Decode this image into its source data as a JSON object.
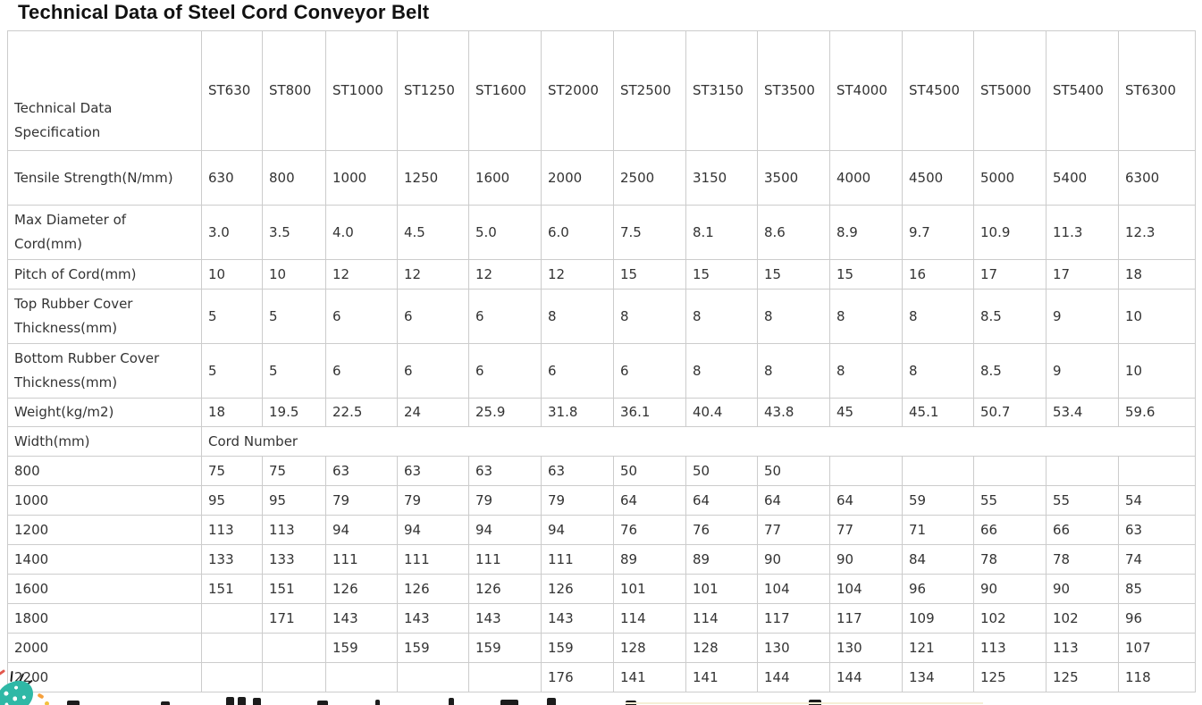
{
  "page": {
    "title": "Technical Data of Steel Cord Conveyor Belt"
  },
  "table": {
    "spec_header": "Technical Data Specification",
    "grades": [
      "ST630",
      "ST800",
      "ST1000",
      "ST1250",
      "ST1600",
      "ST2000",
      "ST2500",
      "ST3150",
      "ST3500",
      "ST4000",
      "ST4500",
      "ST5000",
      "ST5400",
      "ST6300"
    ],
    "spec_rows": [
      {
        "label": "Tensile Strength(N/mm)",
        "values": [
          "630",
          "800",
          "1000",
          "1250",
          "1600",
          "2000",
          "2500",
          "3150",
          "3500",
          "4000",
          "4500",
          "5000",
          "5400",
          "6300"
        ]
      },
      {
        "label": "Max Diameter of Cord(mm)",
        "values": [
          "3.0",
          "3.5",
          "4.0",
          "4.5",
          "5.0",
          "6.0",
          "7.5",
          "8.1",
          "8.6",
          "8.9",
          "9.7",
          "10.9",
          "11.3",
          "12.3"
        ]
      },
      {
        "label": "Pitch of Cord(mm)",
        "values": [
          "10",
          "10",
          "12",
          "12",
          "12",
          "12",
          "15",
          "15",
          "15",
          "15",
          "16",
          "17",
          "17",
          "18"
        ]
      },
      {
        "label": "Top Rubber Cover Thickness(mm)",
        "values": [
          "5",
          "5",
          "6",
          "6",
          "6",
          "8",
          "8",
          "8",
          "8",
          "8",
          "8",
          "8.5",
          "9",
          "10"
        ]
      },
      {
        "label": "Bottom Rubber Cover Thickness(mm)",
        "values": [
          "5",
          "5",
          "6",
          "6",
          "6",
          "6",
          "6",
          "8",
          "8",
          "8",
          "8",
          "8.5",
          "9",
          "10"
        ]
      },
      {
        "label": "Weight(kg/m2)",
        "values": [
          "18",
          "19.5",
          "22.5",
          "24",
          "25.9",
          "31.8",
          "36.1",
          "40.4",
          "43.8",
          "45",
          "45.1",
          "50.7",
          "53.4",
          "59.6"
        ]
      }
    ],
    "width_header": {
      "label": "Width(mm)",
      "span_label": "Cord Number"
    },
    "width_rows": [
      {
        "width": "800",
        "values": [
          "75",
          "75",
          "63",
          "63",
          "63",
          "63",
          "50",
          "50",
          "50",
          "",
          "",
          "",
          "",
          ""
        ]
      },
      {
        "width": "1000",
        "values": [
          "95",
          "95",
          "79",
          "79",
          "79",
          "79",
          "64",
          "64",
          "64",
          "64",
          "59",
          "55",
          "55",
          "54"
        ]
      },
      {
        "width": "1200",
        "values": [
          "113",
          "113",
          "94",
          "94",
          "94",
          "94",
          "76",
          "76",
          "77",
          "77",
          "71",
          "66",
          "66",
          "63"
        ]
      },
      {
        "width": "1400",
        "values": [
          "133",
          "133",
          "111",
          "111",
          "111",
          "111",
          "89",
          "89",
          "90",
          "90",
          "84",
          "78",
          "78",
          "74"
        ]
      },
      {
        "width": "1600",
        "values": [
          "151",
          "151",
          "126",
          "126",
          "126",
          "126",
          "101",
          "101",
          "104",
          "104",
          "96",
          "90",
          "90",
          "85"
        ]
      },
      {
        "width": "1800",
        "values": [
          "",
          "171",
          "143",
          "143",
          "143",
          "143",
          "114",
          "114",
          "117",
          "117",
          "109",
          "102",
          "102",
          "96"
        ]
      },
      {
        "width": "2000",
        "values": [
          "",
          "",
          "159",
          "159",
          "159",
          "159",
          "128",
          "128",
          "130",
          "130",
          "121",
          "113",
          "113",
          "107"
        ]
      },
      {
        "width": "2200",
        "values": [
          "",
          "",
          "",
          "",
          "",
          "176",
          "141",
          "141",
          "144",
          "144",
          "134",
          "125",
          "125",
          "118"
        ]
      }
    ]
  },
  "decoration": {
    "confetti_teal": "#2fb8a6",
    "fleck_orange": "#f6a03c",
    "fleck_yellow": "#f3c13e",
    "fleck_red": "#e2574c",
    "border_gray": "#cccccc",
    "text_gray": "#333333"
  }
}
